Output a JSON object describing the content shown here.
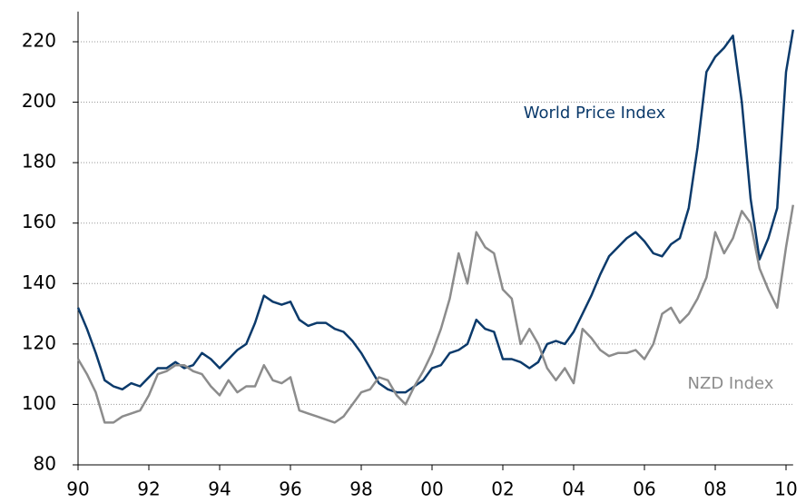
{
  "chart_data": {
    "type": "line",
    "x": [
      1990,
      1990.25,
      1990.5,
      1990.75,
      1991,
      1991.25,
      1991.5,
      1991.75,
      1992,
      1992.25,
      1992.5,
      1992.75,
      1993,
      1993.25,
      1993.5,
      1993.75,
      1994,
      1994.25,
      1994.5,
      1994.75,
      1995,
      1995.25,
      1995.5,
      1995.75,
      1996,
      1996.25,
      1996.5,
      1996.75,
      1997,
      1997.25,
      1997.5,
      1997.75,
      1998,
      1998.25,
      1998.5,
      1998.75,
      1999,
      1999.25,
      1999.5,
      1999.75,
      2000,
      2000.25,
      2000.5,
      2000.75,
      2001,
      2001.25,
      2001.5,
      2001.75,
      2002,
      2002.25,
      2002.5,
      2002.75,
      2003,
      2003.25,
      2003.5,
      2003.75,
      2004,
      2004.25,
      2004.5,
      2004.75,
      2005,
      2005.25,
      2005.5,
      2005.75,
      2006,
      2006.25,
      2006.5,
      2006.75,
      2007,
      2007.25,
      2007.5,
      2007.75,
      2008,
      2008.25,
      2008.5,
      2008.75,
      2009,
      2009.25,
      2009.5,
      2009.75,
      2010,
      2010.2
    ],
    "series": [
      {
        "name": "World Price Index",
        "color": "#0b3a6b",
        "values": [
          132,
          125,
          117,
          108,
          106,
          105,
          107,
          106,
          109,
          112,
          112,
          114,
          112,
          113,
          117,
          115,
          112,
          115,
          118,
          120,
          127,
          136,
          134,
          133,
          134,
          128,
          126,
          127,
          127,
          125,
          124,
          121,
          117,
          112,
          107,
          105,
          104,
          104,
          106,
          108,
          112,
          113,
          117,
          118,
          120,
          128,
          125,
          124,
          115,
          115,
          114,
          112,
          114,
          120,
          121,
          120,
          124,
          130,
          136,
          143,
          149,
          152,
          155,
          157,
          154,
          150,
          149,
          153,
          155,
          165,
          185,
          210,
          215,
          218,
          222,
          200,
          168,
          148,
          155,
          165,
          210,
          224
        ]
      },
      {
        "name": "NZD Index",
        "color": "#8c8c8c",
        "values": [
          115,
          110,
          104,
          94,
          94,
          96,
          97,
          98,
          103,
          110,
          111,
          113,
          113,
          111,
          110,
          106,
          103,
          108,
          104,
          106,
          106,
          113,
          108,
          107,
          109,
          98,
          97,
          96,
          95,
          94,
          96,
          100,
          104,
          105,
          109,
          108,
          103,
          100,
          106,
          111,
          117,
          125,
          135,
          150,
          140,
          157,
          152,
          150,
          138,
          135,
          120,
          125,
          120,
          112,
          108,
          112,
          107,
          125,
          122,
          118,
          116,
          117,
          117,
          118,
          115,
          120,
          130,
          132,
          127,
          130,
          135,
          142,
          157,
          150,
          155,
          164,
          160,
          145,
          138,
          132,
          152,
          166
        ]
      }
    ],
    "xlim": [
      1990,
      2010.2
    ],
    "xticks": [
      {
        "value": 1990,
        "label": "90"
      },
      {
        "value": 1992,
        "label": "92"
      },
      {
        "value": 1994,
        "label": "94"
      },
      {
        "value": 1996,
        "label": "96"
      },
      {
        "value": 1998,
        "label": "98"
      },
      {
        "value": 2000,
        "label": "00"
      },
      {
        "value": 2002,
        "label": "02"
      },
      {
        "value": 2004,
        "label": "04"
      },
      {
        "value": 2006,
        "label": "06"
      },
      {
        "value": 2008,
        "label": "08"
      },
      {
        "value": 2010,
        "label": "10"
      }
    ],
    "ylim": [
      80,
      230
    ],
    "yticks": [
      80,
      100,
      120,
      140,
      160,
      180,
      200,
      220
    ],
    "grid": true
  }
}
